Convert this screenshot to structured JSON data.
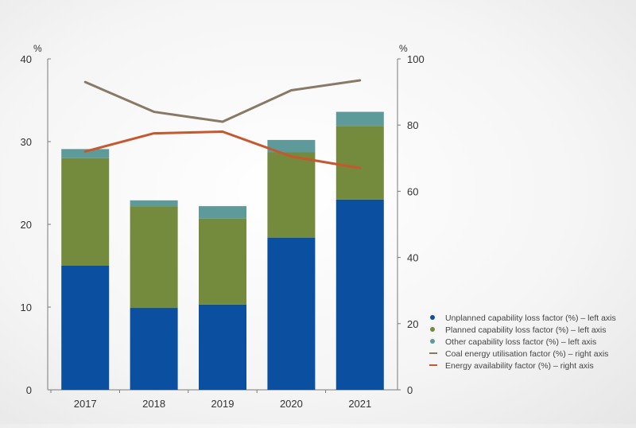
{
  "chart_data": {
    "type": "bar",
    "stacked": true,
    "categories": [
      "2017",
      "2018",
      "2019",
      "2020",
      "2021"
    ],
    "series": [
      {
        "name": "Unplanned capability loss factor (%) – left axis",
        "axis": "left",
        "type": "bar",
        "color": "#0a4fa0",
        "values": [
          15.0,
          9.9,
          10.3,
          18.4,
          23.0
        ]
      },
      {
        "name": "Planned capability loss factor (%) – left axis",
        "axis": "left",
        "type": "bar",
        "color": "#748a3c",
        "values": [
          13.0,
          12.3,
          10.4,
          10.3,
          8.9
        ]
      },
      {
        "name": "Other capability loss factor (%) – left axis",
        "axis": "left",
        "type": "bar",
        "color": "#5e9a9a",
        "values": [
          1.1,
          0.7,
          1.5,
          1.5,
          1.7
        ]
      },
      {
        "name": "Coal energy utilisation factor (%) – right axis",
        "axis": "right",
        "type": "line",
        "color": "#8a7966",
        "values": [
          93.0,
          84.0,
          81.0,
          90.5,
          93.5
        ]
      },
      {
        "name": "Energy availability factor (%) – right axis",
        "axis": "right",
        "type": "line",
        "color": "#c5582f",
        "values": [
          72.0,
          77.5,
          78.0,
          70.5,
          67.0
        ]
      }
    ],
    "left_axis": {
      "unit": "%",
      "ylim": [
        0,
        40
      ],
      "ticks": [
        "0",
        "10",
        "20",
        "30",
        "40"
      ]
    },
    "right_axis": {
      "unit": "%",
      "ylim": [
        0,
        100
      ],
      "ticks": [
        "0",
        "20",
        "40",
        "60",
        "80",
        "100"
      ]
    },
    "legend_position": "bottom-right",
    "grid": false
  }
}
